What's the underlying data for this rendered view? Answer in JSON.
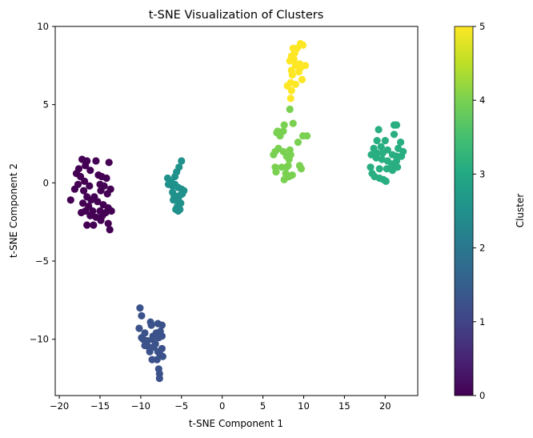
{
  "chart_data": {
    "type": "scatter",
    "title": "t-SNE Visualization of Clusters",
    "xlabel": "t-SNE Component 1",
    "ylabel": "t-SNE Component 2",
    "xlim": [
      -20.5,
      24
    ],
    "ylim": [
      -13.6,
      10
    ],
    "xticks": [
      -20,
      -15,
      -10,
      -5,
      0,
      5,
      10,
      15,
      20
    ],
    "xtick_labels": [
      "−20",
      "−15",
      "−10",
      "−5",
      "0",
      "5",
      "10",
      "15",
      "20"
    ],
    "yticks": [
      -10,
      -5,
      0,
      5,
      10
    ],
    "ytick_labels": [
      "−10",
      "−5",
      "0",
      "5",
      "10"
    ],
    "grid": false,
    "colorbar": {
      "label": "Cluster",
      "range": [
        0,
        5
      ],
      "ticks": [
        0,
        1,
        2,
        3,
        4,
        5
      ],
      "tick_labels": [
        "0",
        "1",
        "2",
        "3",
        "4",
        "5"
      ],
      "colormap": "viridis"
    },
    "colors": {
      "0": "#440154",
      "1": "#3b528b",
      "2": "#21918c",
      "3": "#28ae80",
      "4": "#7ad151",
      "5": "#fde725"
    },
    "clusters": [
      {
        "cluster": 0,
        "points": [
          [
            -17.2,
            1.5
          ],
          [
            -16.6,
            1.4
          ],
          [
            -17.6,
            0.9
          ],
          [
            -17.9,
            0.6
          ],
          [
            -16.8,
            1.1
          ],
          [
            -15.5,
            1.4
          ],
          [
            -16.2,
            0.8
          ],
          [
            -17.4,
            0.4
          ],
          [
            -16.9,
            0.1
          ],
          [
            -17.7,
            -0.1
          ],
          [
            -16.3,
            -0.2
          ],
          [
            -18.1,
            -0.4
          ],
          [
            -17.0,
            -0.5
          ],
          [
            -15.2,
            0.5
          ],
          [
            -14.8,
            0.4
          ],
          [
            -14.2,
            0.3
          ],
          [
            -13.9,
            1.3
          ],
          [
            -15.0,
            -0.1
          ],
          [
            -14.5,
            -0.2
          ],
          [
            -13.7,
            -0.4
          ],
          [
            -14.9,
            -0.5
          ],
          [
            -14.1,
            -0.7
          ],
          [
            -15.7,
            -0.9
          ],
          [
            -16.6,
            -0.9
          ],
          [
            -16.1,
            -1.1
          ],
          [
            -18.6,
            -1.1
          ],
          [
            -17.1,
            -1.3
          ],
          [
            -16.4,
            -1.5
          ],
          [
            -15.3,
            -1.2
          ],
          [
            -14.6,
            -1.4
          ],
          [
            -14.0,
            -1.6
          ],
          [
            -13.6,
            -1.8
          ],
          [
            -14.3,
            -1.9
          ],
          [
            -15.0,
            -1.8
          ],
          [
            -15.9,
            -1.8
          ],
          [
            -16.8,
            -1.8
          ],
          [
            -17.3,
            -1.9
          ],
          [
            -14.7,
            -2.1
          ],
          [
            -15.5,
            -2.2
          ],
          [
            -16.2,
            -2.1
          ],
          [
            -14.9,
            -2.4
          ],
          [
            -16.6,
            -2.7
          ],
          [
            -15.8,
            -2.7
          ],
          [
            -14.0,
            -2.6
          ],
          [
            -13.8,
            -3.0
          ]
        ]
      },
      {
        "cluster": 1,
        "points": [
          [
            -10.1,
            -8.0
          ],
          [
            -9.9,
            -8.5
          ],
          [
            -8.8,
            -8.9
          ],
          [
            -8.7,
            -9.1
          ],
          [
            -7.9,
            -9.0
          ],
          [
            -7.4,
            -9.1
          ],
          [
            -10.2,
            -9.3
          ],
          [
            -9.5,
            -9.6
          ],
          [
            -8.5,
            -9.8
          ],
          [
            -8.1,
            -9.6
          ],
          [
            -7.6,
            -9.5
          ],
          [
            -9.9,
            -9.9
          ],
          [
            -9.2,
            -10.1
          ],
          [
            -8.6,
            -10.0
          ],
          [
            -8.2,
            -10.3
          ],
          [
            -7.8,
            -9.9
          ],
          [
            -7.4,
            -9.8
          ],
          [
            -9.5,
            -10.4
          ],
          [
            -9.0,
            -10.5
          ],
          [
            -8.4,
            -10.5
          ],
          [
            -7.9,
            -10.8
          ],
          [
            -7.6,
            -11.0
          ],
          [
            -7.3,
            -11.1
          ],
          [
            -8.9,
            -10.8
          ],
          [
            -8.6,
            -11.3
          ],
          [
            -8.0,
            -11.3
          ],
          [
            -7.8,
            -11.9
          ],
          [
            -7.7,
            -12.2
          ],
          [
            -7.7,
            -12.5
          ],
          [
            -7.4,
            -10.6
          ],
          [
            -9.7,
            -10.0
          ]
        ]
      },
      {
        "cluster": 2,
        "points": [
          [
            -5.0,
            1.4
          ],
          [
            -5.3,
            1.0
          ],
          [
            -5.6,
            0.7
          ],
          [
            -5.8,
            0.4
          ],
          [
            -6.7,
            0.3
          ],
          [
            -6.3,
            0.1
          ],
          [
            -6.6,
            -0.1
          ],
          [
            -5.8,
            -0.1
          ],
          [
            -6.1,
            -0.2
          ],
          [
            -5.4,
            -0.3
          ],
          [
            -5.0,
            -0.4
          ],
          [
            -4.7,
            -0.5
          ],
          [
            -6.1,
            -0.6
          ],
          [
            -5.9,
            -0.8
          ],
          [
            -5.6,
            -0.9
          ],
          [
            -5.2,
            -0.8
          ],
          [
            -4.9,
            -0.7
          ],
          [
            -5.7,
            -1.1
          ],
          [
            -5.3,
            -1.2
          ],
          [
            -6.0,
            -1.1
          ],
          [
            -5.5,
            -1.5
          ],
          [
            -5.2,
            -1.7
          ],
          [
            -5.7,
            -1.7
          ],
          [
            -5.4,
            -1.8
          ],
          [
            -5.1,
            -1.3
          ]
        ]
      },
      {
        "cluster": 3,
        "points": [
          [
            21.1,
            3.7
          ],
          [
            21.4,
            3.7
          ],
          [
            19.2,
            3.4
          ],
          [
            19.0,
            2.7
          ],
          [
            20.0,
            2.7
          ],
          [
            21.1,
            3.1
          ],
          [
            21.9,
            2.6
          ],
          [
            18.6,
            2.2
          ],
          [
            19.5,
            2.3
          ],
          [
            21.6,
            2.2
          ],
          [
            22.2,
            2.0
          ],
          [
            18.3,
            1.8
          ],
          [
            19.0,
            1.9
          ],
          [
            19.7,
            1.9
          ],
          [
            20.3,
            2.1
          ],
          [
            20.9,
            1.8
          ],
          [
            21.4,
            1.7
          ],
          [
            22.0,
            1.7
          ],
          [
            18.9,
            1.6
          ],
          [
            19.6,
            1.5
          ],
          [
            20.3,
            1.4
          ],
          [
            20.8,
            1.2
          ],
          [
            21.4,
            1.4
          ],
          [
            18.2,
            1.0
          ],
          [
            19.3,
            0.9
          ],
          [
            20.2,
            0.9
          ],
          [
            20.9,
            0.8
          ],
          [
            21.5,
            1.0
          ],
          [
            18.4,
            0.6
          ],
          [
            18.7,
            0.4
          ],
          [
            19.3,
            0.3
          ],
          [
            19.8,
            0.2
          ],
          [
            20.1,
            0.1
          ]
        ]
      },
      {
        "cluster": 4,
        "points": [
          [
            8.3,
            4.7
          ],
          [
            8.7,
            3.8
          ],
          [
            7.6,
            3.7
          ],
          [
            7.5,
            3.3
          ],
          [
            6.8,
            3.3
          ],
          [
            6.7,
            3.2
          ],
          [
            7.1,
            3.0
          ],
          [
            9.9,
            3.0
          ],
          [
            10.4,
            3.0
          ],
          [
            9.3,
            2.6
          ],
          [
            6.9,
            2.2
          ],
          [
            6.5,
            2.0
          ],
          [
            7.5,
            2.0
          ],
          [
            8.3,
            2.1
          ],
          [
            6.3,
            1.8
          ],
          [
            7.9,
            1.7
          ],
          [
            8.4,
            1.8
          ],
          [
            8.2,
            1.5
          ],
          [
            8.1,
            1.1
          ],
          [
            6.5,
            1.0
          ],
          [
            7.3,
            1.0
          ],
          [
            7.9,
            1.0
          ],
          [
            9.5,
            1.1
          ],
          [
            9.7,
            0.9
          ],
          [
            6.6,
            0.7
          ],
          [
            7.8,
            0.6
          ],
          [
            8.6,
            0.5
          ],
          [
            8.2,
            0.4
          ],
          [
            7.6,
            0.2
          ]
        ]
      },
      {
        "cluster": 5,
        "points": [
          [
            9.6,
            8.9
          ],
          [
            9.9,
            8.8
          ],
          [
            8.7,
            8.6
          ],
          [
            8.9,
            8.3
          ],
          [
            9.2,
            8.6
          ],
          [
            8.5,
            8.1
          ],
          [
            8.8,
            7.9
          ],
          [
            8.3,
            7.8
          ],
          [
            9.5,
            7.6
          ],
          [
            9.0,
            7.5
          ],
          [
            10.2,
            7.5
          ],
          [
            9.7,
            7.4
          ],
          [
            8.5,
            7.2
          ],
          [
            9.4,
            7.1
          ],
          [
            8.6,
            6.9
          ],
          [
            9.8,
            6.6
          ],
          [
            8.4,
            6.4
          ],
          [
            9.0,
            6.3
          ],
          [
            8.0,
            6.2
          ],
          [
            8.5,
            5.9
          ],
          [
            8.4,
            5.4
          ]
        ]
      }
    ]
  }
}
